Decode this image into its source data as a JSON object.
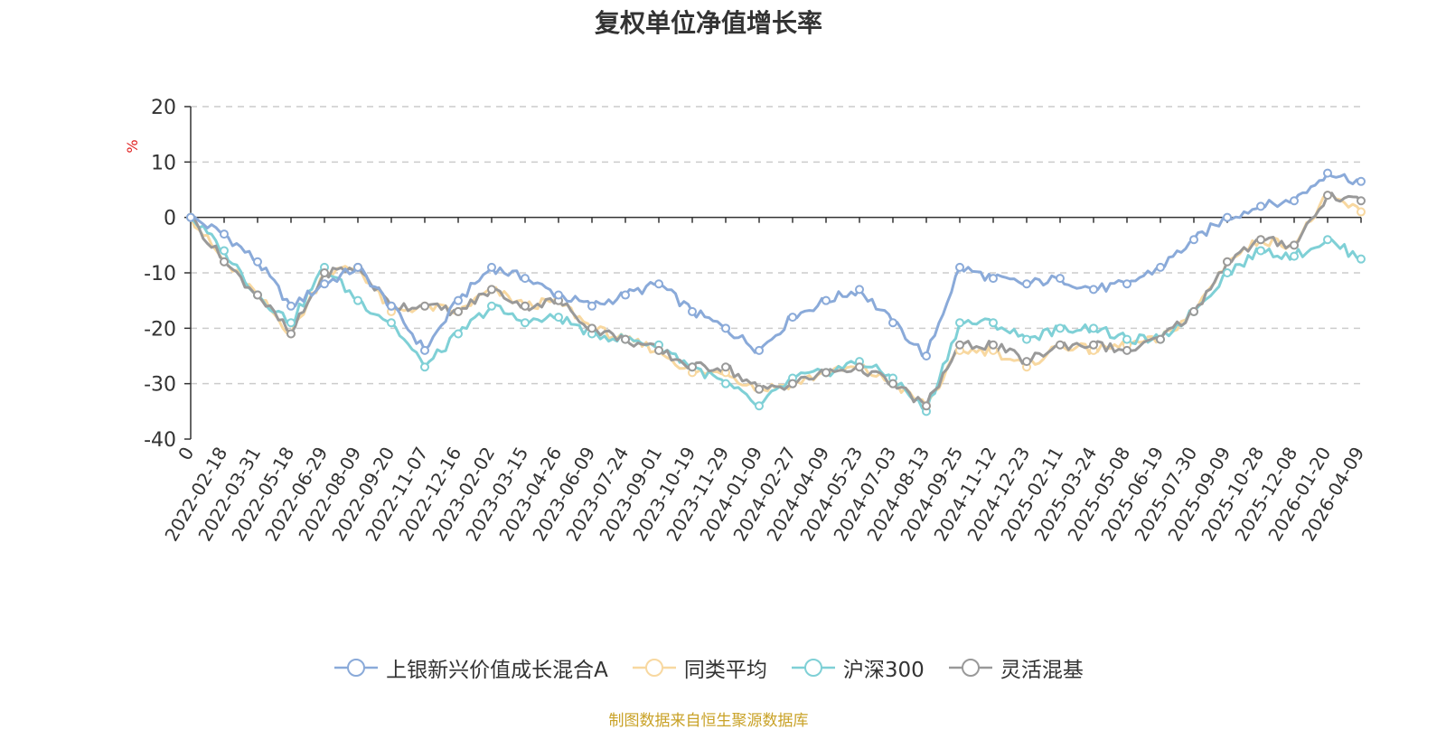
{
  "chart_data": {
    "type": "line",
    "title": "复权单位净值增长率",
    "ylabel": "%",
    "xlabel": "",
    "ylim": [
      -40,
      20
    ],
    "yticks": [
      20,
      10,
      0,
      -10,
      -20,
      -30,
      -40
    ],
    "grid": true,
    "legend_position": "bottom-center",
    "categories": [
      "0",
      "2022-02-18",
      "2022-03-31",
      "2022-05-18",
      "2022-06-29",
      "2022-08-09",
      "2022-09-20",
      "2022-11-07",
      "2022-12-16",
      "2023-02-02",
      "2023-03-15",
      "2023-04-26",
      "2023-06-09",
      "2023-07-24",
      "2023-09-01",
      "2023-10-19",
      "2023-11-29",
      "2024-01-09",
      "2024-02-27",
      "2024-04-09",
      "2024-05-23",
      "2024-07-03",
      "2024-08-13",
      "2024-09-25",
      "2024-11-12",
      "2024-12-23",
      "2025-02-11",
      "2025-03-24",
      "2025-05-08",
      "2025-06-19",
      "2025-07-30",
      "2025-09-09",
      "2025-10-28",
      "2025-12-08",
      "2026-01-20",
      "2026-04-09"
    ],
    "series": [
      {
        "name": "上银新兴价值成长混合A",
        "color": "#8aaad9",
        "values": [
          0,
          -3,
          -8,
          -16,
          -12,
          -9,
          -16,
          -24,
          -15,
          -9,
          -11,
          -14,
          -16,
          -14,
          -12,
          -17,
          -20,
          -24,
          -18,
          -15,
          -13,
          -19,
          -25,
          -9,
          -11,
          -12,
          -11,
          -13,
          -12,
          -9,
          -4,
          0,
          2,
          3,
          8,
          6.5
        ]
      },
      {
        "name": "同类平均",
        "color": "#f8d8a0",
        "values": [
          0,
          -8,
          -14,
          -21,
          -10,
          -9,
          -17,
          -16,
          -17,
          -13,
          -16,
          -15,
          -20,
          -22,
          -24,
          -28,
          -28,
          -31,
          -30,
          -28,
          -27,
          -30,
          -34,
          -24,
          -24,
          -27,
          -23,
          -24,
          -23,
          -22,
          -17,
          -8,
          -4,
          -5,
          4,
          1
        ]
      },
      {
        "name": "沪深300",
        "color": "#7fd0d6",
        "values": [
          0,
          -6,
          -14,
          -19,
          -9,
          -15,
          -19,
          -27,
          -21,
          -16,
          -19,
          -18,
          -21,
          -22,
          -23,
          -27,
          -30,
          -34,
          -29,
          -28,
          -26,
          -29,
          -35,
          -19,
          -19,
          -22,
          -20,
          -20,
          -22,
          -22,
          -17,
          -10,
          -6,
          -7,
          -4,
          -7.5
        ]
      },
      {
        "name": "灵活混基",
        "color": "#999999",
        "values": [
          0,
          -8,
          -14,
          -21,
          -10,
          -9,
          -16,
          -16,
          -17,
          -13,
          -16,
          -15,
          -20,
          -22,
          -24,
          -27,
          -27,
          -31,
          -30,
          -28,
          -27,
          -30,
          -34,
          -23,
          -23,
          -26,
          -23,
          -23,
          -24,
          -22,
          -17,
          -8,
          -4,
          -5,
          4,
          3
        ]
      }
    ]
  },
  "source_text": "制图数据来自恒生聚源数据库"
}
